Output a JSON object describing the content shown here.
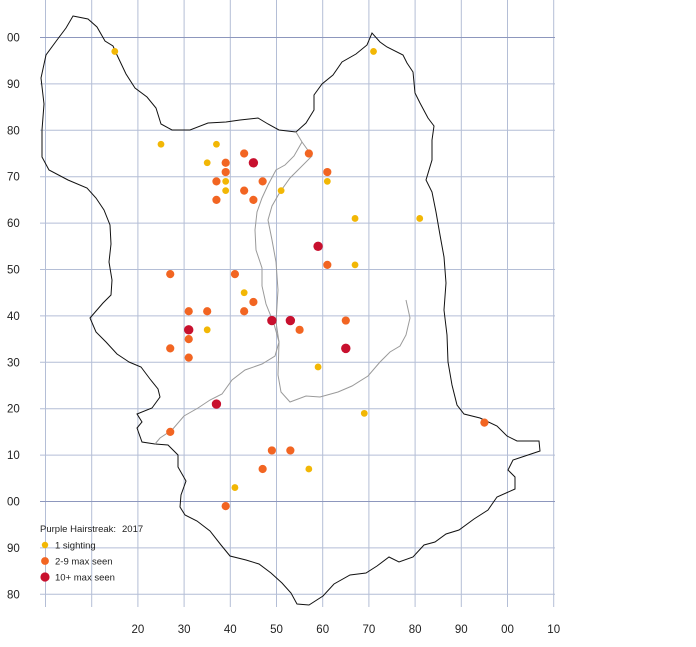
{
  "legend": {
    "species": "Purple Hairstreak:",
    "year": "2017",
    "entries": [
      {
        "label": "1 sighting",
        "color": "#f2b705",
        "size": "small"
      },
      {
        "label": "2-9 max seen",
        "color": "#f26522",
        "size": "medium"
      },
      {
        "label": "10+ max seen",
        "color": "#c8102e",
        "size": "large"
      }
    ]
  },
  "grid": {
    "easting_labels": [
      "20",
      "30",
      "40",
      "50",
      "60",
      "70",
      "80",
      "90",
      "00",
      "10"
    ],
    "northing_labels": [
      "00",
      "90",
      "80",
      "70",
      "60",
      "50",
      "40",
      "30",
      "20",
      "10",
      "00",
      "90",
      "80"
    ],
    "line_color": "#b4bed6",
    "major_line_color": "#8d97bd"
  },
  "sightings": [
    {
      "e": 15,
      "n": 97,
      "cat": 1
    },
    {
      "e": 71,
      "n": 97,
      "cat": 1
    },
    {
      "e": 25,
      "n": 77,
      "cat": 1
    },
    {
      "e": 37,
      "n": 77,
      "cat": 1
    },
    {
      "e": 43,
      "n": 75,
      "cat": 2
    },
    {
      "e": 57,
      "n": 75,
      "cat": 2
    },
    {
      "e": 35,
      "n": 73,
      "cat": 1
    },
    {
      "e": 39,
      "n": 73,
      "cat": 2
    },
    {
      "e": 45,
      "n": 73,
      "cat": 3
    },
    {
      "e": 39,
      "n": 71,
      "cat": 2
    },
    {
      "e": 61,
      "n": 71,
      "cat": 2
    },
    {
      "e": 37,
      "n": 69,
      "cat": 2
    },
    {
      "e": 39,
      "n": 69,
      "cat": 1
    },
    {
      "e": 47,
      "n": 69,
      "cat": 2
    },
    {
      "e": 61,
      "n": 69,
      "cat": 1
    },
    {
      "e": 39,
      "n": 67,
      "cat": 1
    },
    {
      "e": 43,
      "n": 67,
      "cat": 2
    },
    {
      "e": 51,
      "n": 67,
      "cat": 1
    },
    {
      "e": 37,
      "n": 65,
      "cat": 2
    },
    {
      "e": 45,
      "n": 65,
      "cat": 2
    },
    {
      "e": 67,
      "n": 61,
      "cat": 1
    },
    {
      "e": 81,
      "n": 61,
      "cat": 1
    },
    {
      "e": 59,
      "n": 55,
      "cat": 3
    },
    {
      "e": 61,
      "n": 51,
      "cat": 2
    },
    {
      "e": 67,
      "n": 51,
      "cat": 1
    },
    {
      "e": 27,
      "n": 49,
      "cat": 2
    },
    {
      "e": 41,
      "n": 49,
      "cat": 2
    },
    {
      "e": 43,
      "n": 45,
      "cat": 1
    },
    {
      "e": 45,
      "n": 43,
      "cat": 2
    },
    {
      "e": 31,
      "n": 41,
      "cat": 2
    },
    {
      "e": 35,
      "n": 41,
      "cat": 2
    },
    {
      "e": 43,
      "n": 41,
      "cat": 2
    },
    {
      "e": 49,
      "n": 39,
      "cat": 3
    },
    {
      "e": 53,
      "n": 39,
      "cat": 3
    },
    {
      "e": 65,
      "n": 39,
      "cat": 2
    },
    {
      "e": 31,
      "n": 37,
      "cat": 3
    },
    {
      "e": 35,
      "n": 37,
      "cat": 1
    },
    {
      "e": 55,
      "n": 37,
      "cat": 2
    },
    {
      "e": 31,
      "n": 35,
      "cat": 2
    },
    {
      "e": 27,
      "n": 33,
      "cat": 2
    },
    {
      "e": 65,
      "n": 33,
      "cat": 3
    },
    {
      "e": 31,
      "n": 31,
      "cat": 2
    },
    {
      "e": 59,
      "n": 29,
      "cat": 1
    },
    {
      "e": 37,
      "n": 21,
      "cat": 3
    },
    {
      "e": 69,
      "n": 19,
      "cat": 1
    },
    {
      "e": 95,
      "n": 17,
      "cat": 2
    },
    {
      "e": 27,
      "n": 15,
      "cat": 2
    },
    {
      "e": 49,
      "n": 11,
      "cat": 2
    },
    {
      "e": 53,
      "n": 11,
      "cat": 2
    },
    {
      "e": 47,
      "n": 7,
      "cat": 2
    },
    {
      "e": 57,
      "n": 7,
      "cat": 1
    },
    {
      "e": 41,
      "n": 3,
      "cat": 1
    },
    {
      "e": 39,
      "n": -1,
      "cat": 2
    }
  ]
}
